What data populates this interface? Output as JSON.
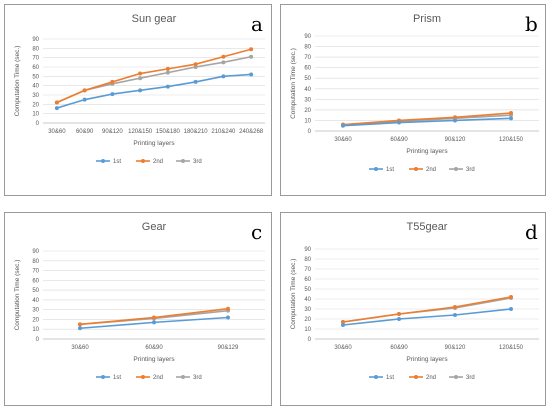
{
  "colors": {
    "1st": "#5b9bd5",
    "2nd": "#ed7d31",
    "3rd": "#a5a5a5",
    "grid": "#d9d9d9",
    "text": "#595959"
  },
  "chart_data": [
    {
      "type": "line",
      "letter": "a",
      "title": "Sun gear",
      "xlabel": "Printing layers",
      "ylabel": "Computation Time (sec.)",
      "ylim": [
        0,
        90
      ],
      "yticks": [
        0,
        10,
        20,
        30,
        40,
        50,
        60,
        70,
        80,
        90
      ],
      "grid": true,
      "legend_position": "bottom",
      "categories": [
        "30&60",
        "60&90",
        "90&120",
        "120&150",
        "150&180",
        "180&210",
        "210&240",
        "240&268"
      ],
      "series": [
        {
          "name": "1st",
          "values": [
            16,
            25,
            31,
            35,
            39,
            44,
            50,
            52
          ]
        },
        {
          "name": "2nd",
          "values": [
            22,
            35,
            44,
            53,
            58,
            63,
            71,
            79
          ]
        },
        {
          "name": "3rd",
          "values": [
            22,
            35,
            42,
            48,
            54,
            60,
            65,
            71
          ]
        }
      ]
    },
    {
      "type": "line",
      "letter": "b",
      "title": "Prism",
      "xlabel": "Printing layers",
      "ylabel": "Computation Time (sec.)",
      "ylim": [
        0,
        90
      ],
      "yticks": [
        0,
        10,
        20,
        30,
        40,
        50,
        60,
        70,
        80,
        90
      ],
      "grid": true,
      "legend_position": "bottom",
      "categories": [
        "30&60",
        "60&90",
        "90&120",
        "120&150"
      ],
      "series": [
        {
          "name": "1st",
          "values": [
            5,
            8,
            10,
            12
          ]
        },
        {
          "name": "2nd",
          "values": [
            6,
            10,
            13,
            17
          ]
        },
        {
          "name": "3rd",
          "values": [
            6,
            9,
            12,
            15
          ]
        }
      ]
    },
    {
      "type": "line",
      "letter": "c",
      "title": "Gear",
      "xlabel": "Printing layers",
      "ylabel": "Computation Time (sec.)",
      "ylim": [
        0,
        90
      ],
      "yticks": [
        0,
        10,
        20,
        30,
        40,
        50,
        60,
        70,
        80,
        90
      ],
      "grid": true,
      "legend_position": "bottom",
      "categories": [
        "30&60",
        "60&90",
        "90&129"
      ],
      "series": [
        {
          "name": "1st",
          "values": [
            11,
            17,
            22
          ]
        },
        {
          "name": "2nd",
          "values": [
            15,
            22,
            31
          ]
        },
        {
          "name": "3rd",
          "values": [
            15,
            21,
            29
          ]
        }
      ]
    },
    {
      "type": "line",
      "letter": "d",
      "title": "T55gear",
      "xlabel": "Printing layers",
      "ylabel": "Computation Time (sec.)",
      "ylim": [
        0,
        90
      ],
      "yticks": [
        0,
        10,
        20,
        30,
        40,
        50,
        60,
        70,
        80,
        90
      ],
      "grid": true,
      "legend_position": "bottom",
      "categories": [
        "30&60",
        "60&90",
        "90&120",
        "120&150"
      ],
      "series": [
        {
          "name": "1st",
          "values": [
            14,
            20,
            24,
            30
          ]
        },
        {
          "name": "2nd",
          "values": [
            17,
            25,
            32,
            42
          ]
        },
        {
          "name": "3rd",
          "values": [
            17,
            25,
            31,
            41
          ]
        }
      ]
    }
  ]
}
